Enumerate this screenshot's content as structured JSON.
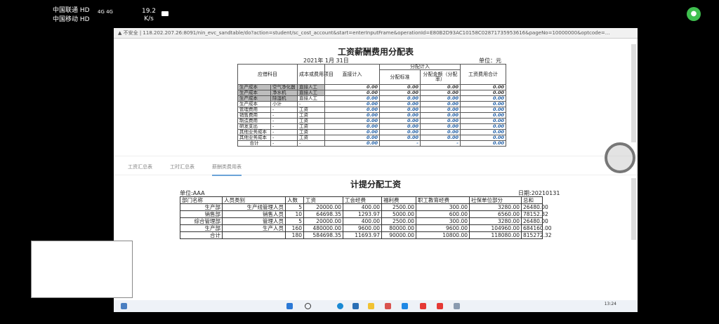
{
  "status_bar": {
    "carrier1": "中国联通 HD",
    "carrier2": "中国移动 HD",
    "network": "4G 4G",
    "speed_value": "19.2",
    "speed_unit": "K/s"
  },
  "browser": {
    "security": "▲ 不安全",
    "url": "118.202.207.26:8091/nin_evc_sandtable/do?action=student/sc_cost_account&start=enterInputFrame&operationId=E80B2D93AC10158C02871735953616&pageNo=10000000&optcode=..."
  },
  "salary_allocation": {
    "title": "工资薪酬费用分配表",
    "date": "2021年 1月 31日",
    "unit": "单位：元",
    "headers": {
      "account": "应借科目",
      "cost_item": "成本或费用项目",
      "direct": "直接计入",
      "allocation": "分配计入",
      "standard": "分配标准",
      "amount": "分配金额（分配率）",
      "total": "工资费用合计"
    },
    "rows": [
      [
        "生产成本",
        "空气净化器",
        "直接人工",
        "0.00",
        "0.00",
        "0.00",
        "0.00"
      ],
      [
        "生产成本",
        "净水机",
        "直接人工",
        "0.00",
        "0.00",
        "0.00",
        "0.00"
      ],
      [
        "生产成本",
        "除湿机",
        "直接人工",
        "0.00",
        "0.00",
        "0.00",
        "0.00"
      ],
      [
        "生产成本",
        "小计",
        "-",
        "0.00",
        "0.00",
        "0.00",
        "0.00"
      ],
      [
        "管理费用",
        "-",
        "工资",
        "0.00",
        "0.00",
        "0.00",
        "0.00"
      ],
      [
        "销售费用",
        "-",
        "工资",
        "0.00",
        "0.00",
        "0.00",
        "0.00"
      ],
      [
        "制造费用",
        "-",
        "工资",
        "0.00",
        "0.00",
        "0.00",
        "0.00"
      ],
      [
        "研发支出",
        "-",
        "工资",
        "0.00",
        "0.00",
        "0.00",
        "0.00"
      ],
      [
        "其他业务成本",
        "-",
        "工资",
        "0.00",
        "0.00",
        "0.00",
        "0.00"
      ],
      [
        "其他业务成本",
        "-",
        "工资",
        "0.00",
        "0.00",
        "0.00",
        "0.00"
      ],
      [
        "合计",
        "-",
        "-",
        "0.00",
        "-",
        "-",
        "0.00"
      ]
    ]
  },
  "tabs": [
    {
      "label": "工资汇总表"
    },
    {
      "label": "工时汇总表"
    },
    {
      "label": "薪酬类费用表",
      "active": true
    }
  ],
  "accrued_salary": {
    "title": "计提分配工资",
    "unit": "单位:AAA",
    "date": "日期:20210131",
    "headers": [
      "部门名称",
      "人员类别",
      "人数",
      "工资",
      "工会经费",
      "福利费",
      "职工教育经费",
      "社保单位部分",
      "总和"
    ],
    "rows": [
      [
        "生产部",
        "生产线管理人员",
        "5",
        "20000.00",
        "400.00",
        "2500.00",
        "300.00",
        "3280.00",
        "26480.00"
      ],
      [
        "销售部",
        "销售人员",
        "10",
        "64698.35",
        "1293.97",
        "5000.00",
        "600.00",
        "6560.00",
        "78152.32"
      ],
      [
        "综合管理部",
        "管理人员",
        "5",
        "20000.00",
        "400.00",
        "2500.00",
        "300.00",
        "3280.00",
        "26480.00"
      ],
      [
        "生产部",
        "生产人员",
        "160",
        "480000.00",
        "9600.00",
        "80000.00",
        "9600.00",
        "104960.00",
        "684160.00"
      ],
      [
        "合计",
        "",
        "180",
        "584698.35",
        "11693.97",
        "90000.00",
        "10800.00",
        "118080.00",
        "815272.32"
      ]
    ]
  },
  "taskbar": {
    "time": "13:24"
  },
  "colors": {
    "accent_tab": "#6aa3d8",
    "number_blue": "#1f5fa8",
    "mic_green": "#3fbf4f"
  }
}
